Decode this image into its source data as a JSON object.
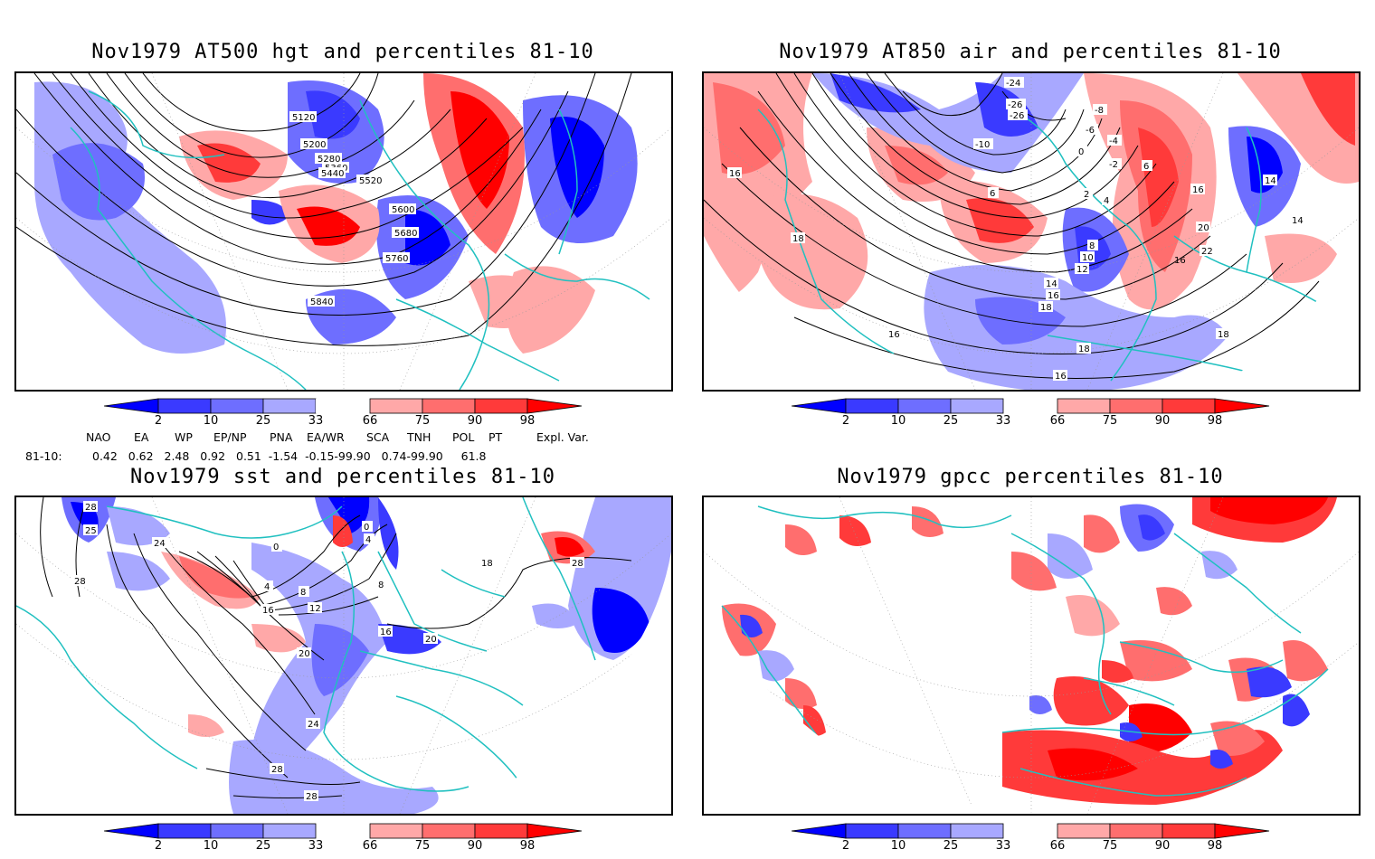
{
  "panels": [
    {
      "id": "p1",
      "title": "Nov1979 AT500 hgt and percentiles 81-10",
      "contour_labels": [
        "5120",
        "5200",
        "5280",
        "5360",
        "5440",
        "5520",
        "5600",
        "5680",
        "5760",
        "5840"
      ]
    },
    {
      "id": "p2",
      "title": "Nov1979 AT850 air and percentiles 81-10",
      "contour_labels": [
        "-24",
        "-26",
        "-26",
        "-10",
        "-8",
        "-6",
        "-4",
        "-2",
        "0",
        "2",
        "4",
        "6",
        "8",
        "10",
        "12",
        "14",
        "16",
        "18",
        "20",
        "22",
        "14",
        "16",
        "18",
        "18",
        "16",
        "16",
        "18",
        "6",
        "16",
        "14",
        "16"
      ]
    },
    {
      "id": "p3",
      "title": "Nov1979 sst and percentiles 81-10",
      "contour_labels": [
        "28",
        "25",
        "24",
        "28",
        "0",
        "4",
        "8",
        "12",
        "16",
        "20",
        "24",
        "28",
        "28",
        "16",
        "20",
        "18",
        "8",
        "28",
        "0",
        "4"
      ]
    },
    {
      "id": "p4",
      "title": "Nov1979 gpcc percentiles 81-10",
      "contour_labels": []
    }
  ],
  "colorbar": {
    "labels": [
      "2",
      "10",
      "25",
      "33",
      "66",
      "75",
      "90",
      "98"
    ],
    "colors": [
      "#0000ff",
      "#3a3aff",
      "#6e6eff",
      "#a8a8ff",
      "#ffa8a8",
      "#ff6e6e",
      "#ff3a3a",
      "#ff0000"
    ]
  },
  "indices": {
    "headers": [
      "NAO",
      "EA",
      "WP",
      "EP/NP",
      "PNA",
      "EA/WR",
      "SCA",
      "TNH",
      "POL",
      "PT",
      "Expl. Var."
    ],
    "row_label": "81-10:",
    "values": "0.42   0.62   2.48   0.92   0.51  -1.54  -0.15-99.90   0.74-99.90     61.8"
  }
}
